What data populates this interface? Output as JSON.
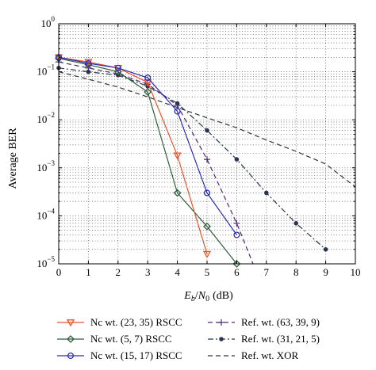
{
  "chart_data": {
    "type": "line",
    "xlabel": "E_b/N_0 (dB)",
    "xlabel_parts": {
      "E": "E",
      "b": "b",
      "slash": "/",
      "N": "N",
      "zero": "0",
      "unit": "(dB)"
    },
    "ylabel": "Average BER",
    "xlim": [
      0,
      10
    ],
    "ylim": [
      1e-05,
      1
    ],
    "yscale": "log",
    "grid": true,
    "grid_style": "dotted",
    "legend_position": "below",
    "x_ticks": [
      "0",
      "1",
      "2",
      "3",
      "4",
      "5",
      "6",
      "7",
      "8",
      "9",
      "10"
    ],
    "y_ticks": [
      {
        "base": "10",
        "exp": "0"
      },
      {
        "base": "10",
        "exp": "−1"
      },
      {
        "base": "10",
        "exp": "−2"
      },
      {
        "base": "10",
        "exp": "−3"
      },
      {
        "base": "10",
        "exp": "−4"
      },
      {
        "base": "10",
        "exp": "−5"
      }
    ],
    "series": [
      {
        "name": "Nc wt. (23, 35) RSCC",
        "color": "#e8542a",
        "marker": "triangle-down",
        "linestyle": "solid",
        "x": [
          0,
          1,
          2,
          3,
          4,
          5
        ],
        "y": [
          0.2,
          0.16,
          0.12,
          0.06,
          0.0018,
          1.6e-05
        ]
      },
      {
        "name": "Nc wt. (5, 7) RSCC",
        "color": "#2e5e3e",
        "marker": "diamond",
        "linestyle": "solid",
        "x": [
          0,
          1,
          2,
          3,
          4,
          5,
          6
        ],
        "y": [
          0.19,
          0.14,
          0.1,
          0.038,
          0.0003,
          6e-05,
          1e-05
        ]
      },
      {
        "name": "Nc wt. (15, 17) RSCC",
        "color": "#2b2bb8",
        "marker": "circle",
        "linestyle": "solid",
        "x": [
          0,
          1,
          2,
          3,
          4,
          5,
          6
        ],
        "y": [
          0.2,
          0.15,
          0.12,
          0.075,
          0.015,
          0.0003,
          4e-05
        ]
      },
      {
        "name": "Ref. wt. (63, 39, 9)",
        "color": "#4a2a6a",
        "marker": "plus",
        "linestyle": "dashed",
        "x": [
          0,
          1,
          2,
          3,
          4,
          5,
          6,
          6.55
        ],
        "y": [
          0.16,
          0.12,
          0.09,
          0.055,
          0.02,
          0.0015,
          7e-05,
          1e-05
        ]
      },
      {
        "name": "Ref. wt. (31, 21, 5)",
        "color": "#2a3550",
        "marker": "star",
        "linestyle": "dashdot",
        "x": [
          0,
          1,
          2,
          3,
          4,
          5,
          6,
          7,
          8,
          9
        ],
        "y": [
          0.12,
          0.1,
          0.085,
          0.05,
          0.022,
          0.006,
          0.0015,
          0.0003,
          7e-05,
          2e-05
        ]
      },
      {
        "name": "Ref. wt. XOR",
        "color": "#333333",
        "marker": "none",
        "linestyle": "dashed",
        "x": [
          0,
          1,
          2,
          3,
          4,
          5,
          6,
          7,
          8,
          9,
          10
        ],
        "y": [
          0.1,
          0.07,
          0.048,
          0.03,
          0.018,
          0.011,
          0.0068,
          0.0038,
          0.0022,
          0.0012,
          0.0004
        ]
      }
    ]
  }
}
